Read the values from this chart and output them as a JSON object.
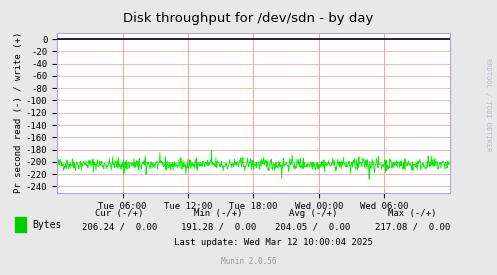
{
  "title": "Disk throughput for /dev/sdn - by day",
  "ylabel": "Pr second read (-) / write (+)",
  "background_color": "#E8E8E8",
  "plot_bg_color": "#FFFFFF",
  "grid_color": "#FF9999",
  "line_color": "#00EE00",
  "ylim": [
    -250,
    10
  ],
  "yticks": [
    0,
    -20,
    -40,
    -60,
    -80,
    -100,
    -120,
    -140,
    -160,
    -180,
    -200,
    -220,
    -240
  ],
  "xtick_labels": [
    "Tue 06:00",
    "Tue 12:00",
    "Tue 18:00",
    "Wed 00:00",
    "Wed 06:00"
  ],
  "legend_label": "Bytes",
  "legend_color": "#00CC00",
  "cur_label": "Cur (-/+)",
  "min_label": "Min (-/+)",
  "avg_label": "Avg (-/+)",
  "max_label": "Max (-/+)",
  "cur_val": "206.24 /  0.00",
  "min_val": "191.28 /  0.00",
  "avg_val": "204.05 /  0.00",
  "max_val": "217.08 /  0.00",
  "last_update": "Last update: Wed Mar 12 10:00:04 2025",
  "munin_label": "Munin 2.0.56",
  "rrdtool_label": "RRDTOOL / TOBI OETIKER",
  "signal_mean": -204,
  "signal_std": 5,
  "n_points": 800,
  "top_line_color": "#000033",
  "border_color": "#AAAACC",
  "title_color": "#000000",
  "axis_label_color": "#000000",
  "stats_color": "#000000",
  "munin_color": "#999999",
  "outer_bg_color": "#D0D0D0"
}
